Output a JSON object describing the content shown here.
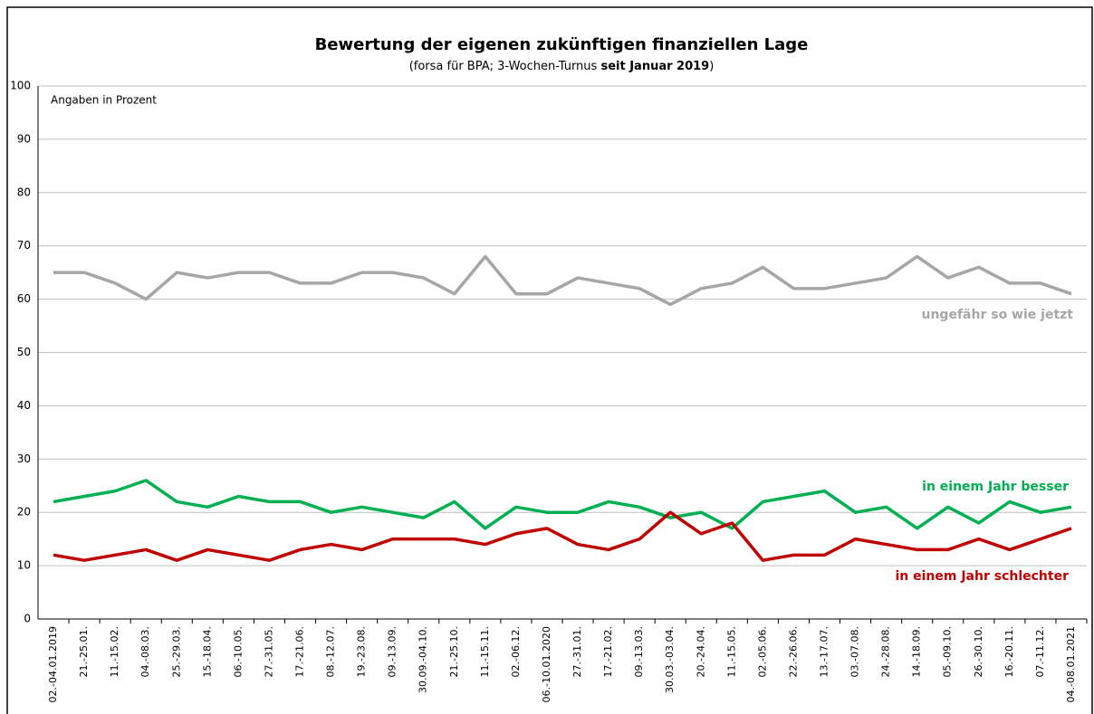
{
  "chart_data": {
    "type": "line",
    "title": "Bewertung der eigenen zukünftigen finanziellen Lage",
    "subtitle": [
      "(forsa für BPA; 3-Wochen-Turnus ",
      "seit Januar 2019",
      ")"
    ],
    "annotation": "Angaben in Prozent",
    "categories": [
      "02.-04.01.2019",
      "21.-25.01.",
      "11.-15.02.",
      "04.-08.03.",
      "25.-29.03.",
      "15.-18.04.",
      "06.-10.05.",
      "27.-31.05.",
      "17.-21.06.",
      "08.-12.07.",
      "19.-23.08.",
      "09.-13.09.",
      "30.09.-04.10.",
      "21.-25.10.",
      "11.-15.11.",
      "02.-06.12.",
      "06.-10.01.2020",
      "27.-31.01.",
      "17.-21.02.",
      "09.-13.03.",
      "30.03.-03.04.",
      "20.-24.04.",
      "11.-15.05.",
      "02.-05.06.",
      "22.-26.06.",
      "13.-17.07.",
      "03.-07.08.",
      "24.-28.08.",
      "14.-18.09.",
      "05.-09.10.",
      "26.-30.10.",
      "16.-20.11.",
      "07.-11.12.",
      "04.-08.01.2021"
    ],
    "series": [
      {
        "name": "ungefähr so wie jetzt",
        "color": "#a6a6a6",
        "values": [
          65,
          65,
          63,
          60,
          65,
          64,
          65,
          65,
          63,
          63,
          65,
          65,
          64,
          61,
          68,
          61,
          61,
          64,
          63,
          62,
          59,
          62,
          63,
          66,
          62,
          62,
          63,
          64,
          68,
          64,
          66,
          63,
          63,
          61
        ]
      },
      {
        "name": "in einem Jahr besser",
        "color": "#00b050",
        "values": [
          22,
          23,
          24,
          26,
          22,
          21,
          23,
          22,
          22,
          20,
          21,
          20,
          19,
          22,
          17,
          21,
          20,
          20,
          22,
          21,
          19,
          20,
          17,
          22,
          23,
          24,
          20,
          21,
          17,
          21,
          18,
          22,
          20,
          21
        ]
      },
      {
        "name": "in einem Jahr schlechter",
        "color": "#c00000",
        "values": [
          12,
          11,
          12,
          13,
          11,
          13,
          12,
          11,
          13,
          14,
          13,
          15,
          15,
          15,
          14,
          16,
          17,
          14,
          13,
          15,
          20,
          16,
          18,
          11,
          12,
          12,
          15,
          14,
          13,
          13,
          15,
          13,
          15,
          17
        ]
      }
    ],
    "ylim": [
      0,
      100
    ],
    "yticks": [
      0,
      10,
      20,
      30,
      40,
      50,
      60,
      70,
      80,
      90,
      100
    ],
    "grid": true
  }
}
